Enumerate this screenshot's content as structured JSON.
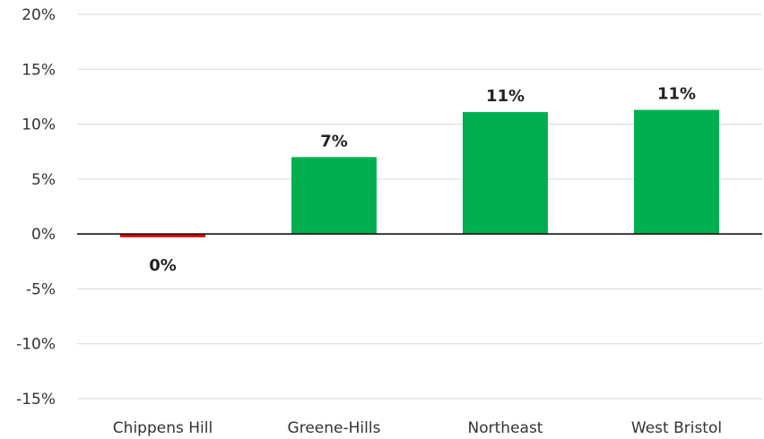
{
  "chart_data": {
    "type": "bar",
    "title": "",
    "xlabel": "",
    "ylabel": "",
    "categories": [
      "Chippens Hill",
      "Greene-Hills",
      "Northeast",
      "West Bristol"
    ],
    "values": [
      -0.3,
      7.0,
      11.1,
      11.3
    ],
    "data_labels": [
      "0%",
      "7%",
      "11%",
      "11%"
    ],
    "ylim": [
      -15,
      20
    ],
    "yticks": [
      20,
      15,
      10,
      5,
      0,
      -5,
      -10,
      -15
    ],
    "ytick_labels": [
      "20%",
      "15%",
      "10%",
      "5%",
      "0%",
      "-5%",
      "-10%",
      "-15%"
    ],
    "grid": true,
    "legend": "none",
    "colors": {
      "positive": "#00B050",
      "negative": "#E00000",
      "grid": "#D9D9D9",
      "zero_line": "#000000",
      "text": "#333333"
    }
  }
}
